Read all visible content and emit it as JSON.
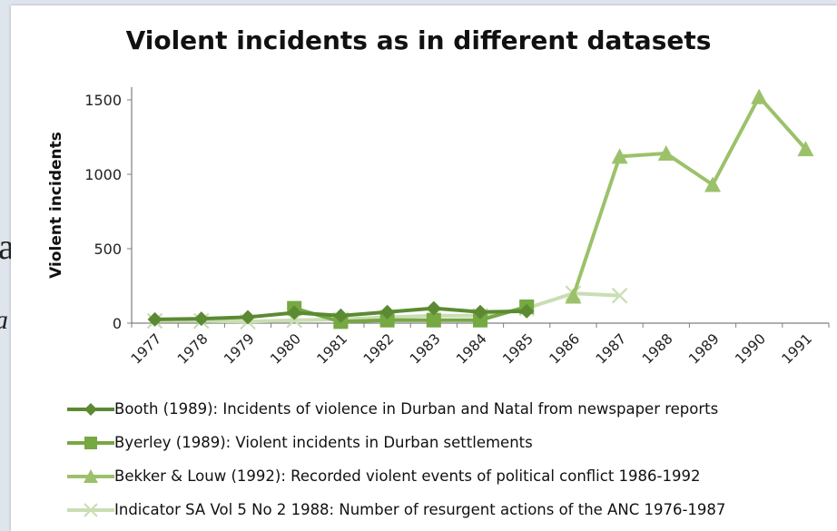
{
  "background_text": {
    "fragment1": "a",
    "fragment2": "a"
  },
  "colors": {
    "booth": "#5b8a33",
    "byerley": "#76a843",
    "bekker": "#9bc26a",
    "indicator": "#c9deb3",
    "axis": "#7f7f7f"
  },
  "chart_data": {
    "type": "line",
    "title": "Violent incidents as in different datasets",
    "xlabel": "",
    "ylabel": "Violent incidents",
    "categories": [
      "1977",
      "1978",
      "1979",
      "1980",
      "1981",
      "1982",
      "1983",
      "1984",
      "1985",
      "1986",
      "1987",
      "1988",
      "1989",
      "1990",
      "1991"
    ],
    "ylim": [
      0,
      1500
    ],
    "yticks": [
      0,
      500,
      1000,
      1500
    ],
    "grid": false,
    "legend_position": "bottom",
    "series": [
      {
        "name": "Booth (1989): Incidents of violence in Durban and Natal from newspaper reports",
        "marker": "diamond",
        "color": "#5b8a33",
        "values": [
          25,
          30,
          40,
          70,
          50,
          75,
          100,
          75,
          80,
          null,
          null,
          null,
          null,
          null,
          null
        ]
      },
      {
        "name": "Byerley (1989): Violent incidents in Durban settlements",
        "marker": "square",
        "color": "#76a843",
        "values": [
          null,
          null,
          null,
          100,
          10,
          20,
          20,
          20,
          110,
          null,
          null,
          null,
          null,
          null,
          null
        ]
      },
      {
        "name": "Bekker & Louw (1992): Recorded violent events of political conflict 1986-1992",
        "marker": "triangle",
        "color": "#9bc26a",
        "values": [
          null,
          null,
          null,
          null,
          null,
          null,
          null,
          null,
          null,
          180,
          1120,
          1140,
          930,
          1520,
          1170
        ]
      },
      {
        "name": "Indicator SA Vol 5 No 2 1988: Number of resurgent actions of the ANC 1976-1987",
        "marker": "x",
        "color": "#c9deb3",
        "values": [
          15,
          15,
          10,
          20,
          25,
          40,
          50,
          50,
          100,
          200,
          185,
          null,
          null,
          null,
          null
        ]
      }
    ]
  }
}
